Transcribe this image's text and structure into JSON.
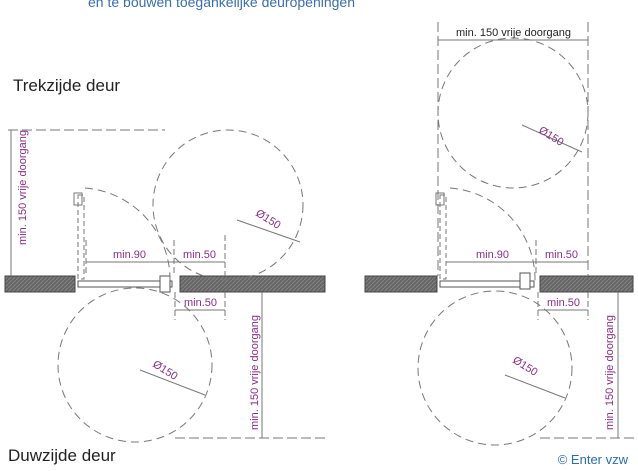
{
  "header_cut_text": "en te bouwen toegankelijke deuropeningen",
  "labels": {
    "pull_side": "Trekzijde deur",
    "push_side": "Duwzijde deur",
    "credit": "© Enter vzw"
  },
  "dimensions": {
    "clear_passage": "min. 150 vrije doorgang",
    "door_width": "min.90",
    "side_space": "min.50",
    "turning_circle": "Ø150"
  },
  "colors": {
    "dimension_text": "#8b2f86",
    "line": "#555555",
    "wall": "#555555",
    "header_text": "#3a6fb0",
    "credit_text": "#2a6db5"
  }
}
